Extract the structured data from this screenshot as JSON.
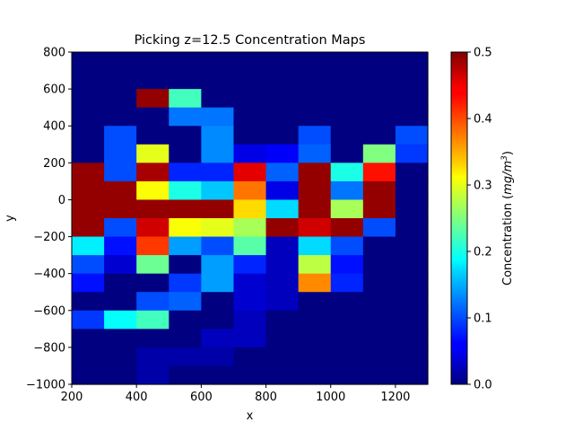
{
  "chart_data": {
    "type": "heatmap",
    "title": "Picking z=12.5 Concentration Maps",
    "xlabel": "x",
    "ylabel": "y",
    "xlim": [
      200,
      1300
    ],
    "ylim": [
      -1000,
      800
    ],
    "x_ticks": [
      200,
      400,
      600,
      800,
      1000,
      1200
    ],
    "y_ticks": [
      -1000,
      -800,
      -600,
      -400,
      -200,
      0,
      200,
      400,
      600,
      800
    ],
    "x_tick_labels": [
      "200",
      "400",
      "600",
      "800",
      "1000",
      "1200"
    ],
    "y_tick_labels": [
      "−1000",
      "−800",
      "−600",
      "−400",
      "−200",
      "0",
      "200",
      "400",
      "600",
      "800"
    ],
    "x_edges": [
      200,
      300,
      400,
      500,
      600,
      700,
      800,
      900,
      1000,
      1100,
      1200,
      1300
    ],
    "y_edges": [
      800,
      600,
      500,
      400,
      300,
      200,
      100,
      0,
      -100,
      -200,
      -300,
      -400,
      -500,
      -600,
      -700,
      -800,
      -900,
      -1000
    ],
    "values": [
      [
        0,
        0,
        0,
        0,
        0,
        0,
        0,
        0,
        0,
        0,
        0
      ],
      [
        0,
        0,
        0.49,
        0.22,
        0,
        0,
        0,
        0,
        0,
        0,
        0
      ],
      [
        0,
        0,
        0,
        0.12,
        0.12,
        0,
        0,
        0,
        0,
        0,
        0
      ],
      [
        0,
        0.1,
        0,
        0,
        0.13,
        0,
        0,
        0.1,
        0,
        0,
        0.1
      ],
      [
        0,
        0.1,
        0.3,
        0,
        0.13,
        0.05,
        0.06,
        0.11,
        0,
        0.25,
        0.09
      ],
      [
        0.49,
        0.1,
        0.48,
        0.08,
        0.08,
        0.45,
        0.11,
        0.49,
        0.2,
        0.43,
        0
      ],
      [
        0.49,
        0.49,
        0.31,
        0.2,
        0.16,
        0.38,
        0.05,
        0.49,
        0.12,
        0.49,
        0
      ],
      [
        0.49,
        0.49,
        0.49,
        0.49,
        0.49,
        0.33,
        0.17,
        0.49,
        0.27,
        0.49,
        0
      ],
      [
        0.49,
        0.1,
        0.46,
        0.31,
        0.3,
        0.27,
        0.49,
        0.46,
        0.49,
        0.1,
        0
      ],
      [
        0.18,
        0.07,
        0.41,
        0.14,
        0.1,
        0.23,
        0.03,
        0.17,
        0.1,
        0,
        0
      ],
      [
        0.1,
        0.04,
        0.24,
        0,
        0.14,
        0.08,
        0.03,
        0.28,
        0.07,
        0,
        0
      ],
      [
        0.07,
        0,
        0,
        0.09,
        0.14,
        0.04,
        0.03,
        0.37,
        0.08,
        0,
        0
      ],
      [
        0,
        0,
        0.1,
        0.11,
        0,
        0.04,
        0.03,
        0,
        0,
        0,
        0
      ],
      [
        0.09,
        0.19,
        0.22,
        0,
        0,
        0.03,
        0,
        0,
        0,
        0,
        0
      ],
      [
        0,
        0,
        0,
        0,
        0.03,
        0.03,
        0,
        0,
        0,
        0,
        0
      ],
      [
        0,
        0,
        0.02,
        0.02,
        0.02,
        0,
        0,
        0,
        0,
        0,
        0
      ],
      [
        0,
        0,
        0.02,
        0,
        0,
        0,
        0,
        0,
        0,
        0,
        0
      ]
    ],
    "colorbar": {
      "label": "Concentration (mg/m³)",
      "label_main": "Concentration (",
      "label_unit": "mg/m",
      "label_sup": "3",
      "label_close": ")",
      "range": [
        0.0,
        0.5
      ],
      "ticks": [
        0.0,
        0.1,
        0.2,
        0.3,
        0.4,
        0.5
      ],
      "tick_labels": [
        "0.0",
        "0.1",
        "0.2",
        "0.3",
        "0.4",
        "0.5"
      ],
      "colormap": "jet"
    }
  }
}
